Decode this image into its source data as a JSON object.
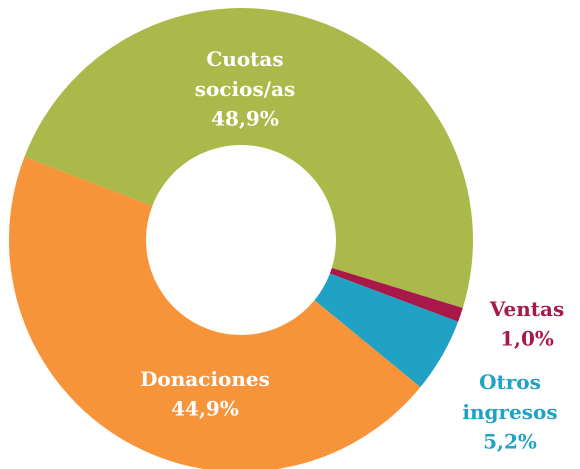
{
  "chart_data": {
    "type": "donut",
    "categories": [
      "Cuotas socios/as",
      "Ventas",
      "Otros ingresos",
      "Donaciones"
    ],
    "values": [
      48.9,
      1.0,
      5.2,
      44.9
    ],
    "value_labels": [
      "48,9%",
      "1,0%",
      "5,2%",
      "44,9%"
    ],
    "colors": [
      "#abb94b",
      "#a8194a",
      "#20a2c4",
      "#f7943a"
    ]
  }
}
